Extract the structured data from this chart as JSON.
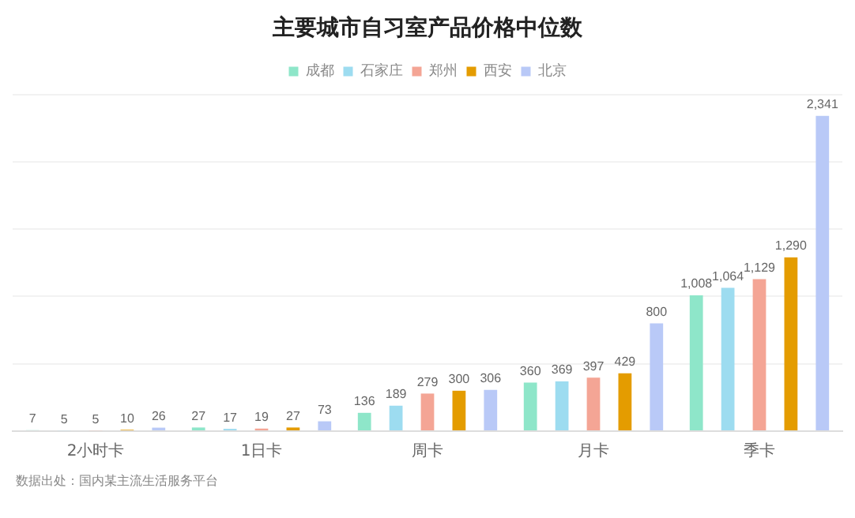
{
  "chart_data": {
    "type": "bar",
    "title": "主要城市自习室产品价格中位数",
    "categories": [
      "2小时卡",
      "1日卡",
      "周卡",
      "月卡",
      "季卡"
    ],
    "series": [
      {
        "name": "成都",
        "color": "#8ee6c9",
        "values": [
          7,
          27,
          136,
          360,
          1008
        ],
        "value_labels": [
          "7",
          "27",
          "136",
          "360",
          "1,008"
        ]
      },
      {
        "name": "石家庄",
        "color": "#9ddcf0",
        "values": [
          5,
          17,
          189,
          369,
          1064
        ],
        "value_labels": [
          "5",
          "17",
          "189",
          "369",
          "1,064"
        ]
      },
      {
        "name": "郑州",
        "color": "#f4a595",
        "values": [
          5,
          19,
          279,
          397,
          1129
        ],
        "value_labels": [
          "5",
          "19",
          "279",
          "397",
          "1,129"
        ]
      },
      {
        "name": "西安",
        "color": "#e49c00",
        "values": [
          10,
          27,
          300,
          429,
          1290
        ],
        "value_labels": [
          "10",
          "27",
          "300",
          "429",
          "1,290"
        ]
      },
      {
        "name": "北京",
        "color": "#b9c9f7",
        "values": [
          26,
          73,
          306,
          800,
          2341
        ],
        "value_labels": [
          "26",
          "73",
          "306",
          "800",
          "2,341"
        ]
      }
    ],
    "ylim": [
      0,
      2500
    ],
    "yticks": [
      0,
      {
        "value": 500,
        "label": null
      },
      {
        "value": 1000,
        "label": null
      },
      {
        "value": 1500,
        "label": null
      },
      {
        "value": 2000,
        "label": null
      },
      {
        "value": 2500,
        "label": null
      }
    ],
    "tick_labels": "x",
    "grid": "y",
    "legend": "top",
    "annotations": [
      "数据出处：国内某主流生活服务平台"
    ]
  }
}
